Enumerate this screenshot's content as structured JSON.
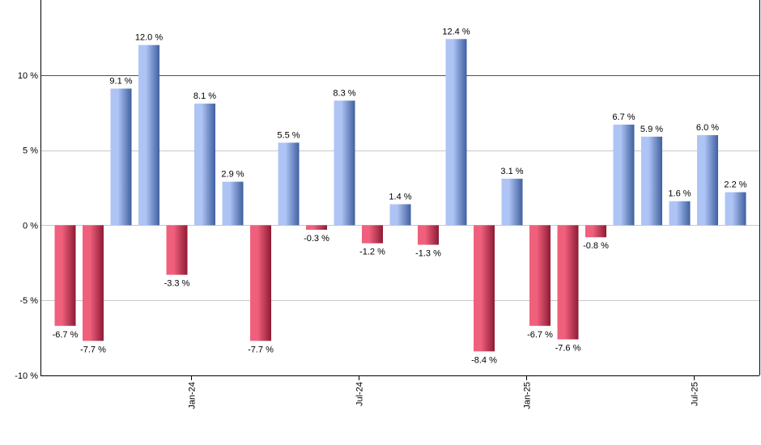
{
  "colors": {
    "positive_light": "#aec4f5",
    "positive_dark": "#40609f",
    "negative_light": "#f0607c",
    "negative_dark": "#8e1b34",
    "grid": "#c8c8c8",
    "reference_line": "#2e6b1d",
    "axis": "#000000"
  },
  "chart_data": {
    "type": "bar",
    "title": "",
    "xlabel": "",
    "ylabel": "",
    "ylim": [
      -10,
      15
    ],
    "grid": true,
    "reference_line": 10,
    "y_ticks": [
      {
        "value": 10,
        "label": "10 %"
      },
      {
        "value": 5,
        "label": "5 %"
      },
      {
        "value": 0,
        "label": "0 %"
      },
      {
        "value": -5,
        "label": "-5 %"
      },
      {
        "value": -10,
        "label": "-10 %"
      }
    ],
    "x_ticks": [
      {
        "index": 4.5,
        "label": "Jan-24"
      },
      {
        "index": 10.5,
        "label": "Jul-24"
      },
      {
        "index": 16.5,
        "label": "Jan-25"
      },
      {
        "index": 22.5,
        "label": "Jul-25"
      }
    ],
    "values": [
      -6.7,
      -7.7,
      9.1,
      12.0,
      -3.3,
      8.1,
      2.9,
      -7.7,
      5.5,
      -0.3,
      8.3,
      -1.2,
      1.4,
      -1.3,
      12.4,
      -8.4,
      3.1,
      -6.7,
      -7.6,
      -0.8,
      6.7,
      5.9,
      1.6,
      6.0,
      2.2
    ],
    "labels": [
      "-6.7 %",
      "-7.7 %",
      "9.1 %",
      "12.0 %",
      "-3.3 %",
      "8.1 %",
      "2.9 %",
      "-7.7 %",
      "5.5 %",
      "-0.3 %",
      "8.3 %",
      "-1.2 %",
      "1.4 %",
      "-1.3 %",
      "12.4 %",
      "-8.4 %",
      "3.1 %",
      "-6.7 %",
      "-7.6 %",
      "-0.8 %",
      "6.7 %",
      "5.9 %",
      "1.6 %",
      "6.0 %",
      "2.2 %"
    ]
  }
}
